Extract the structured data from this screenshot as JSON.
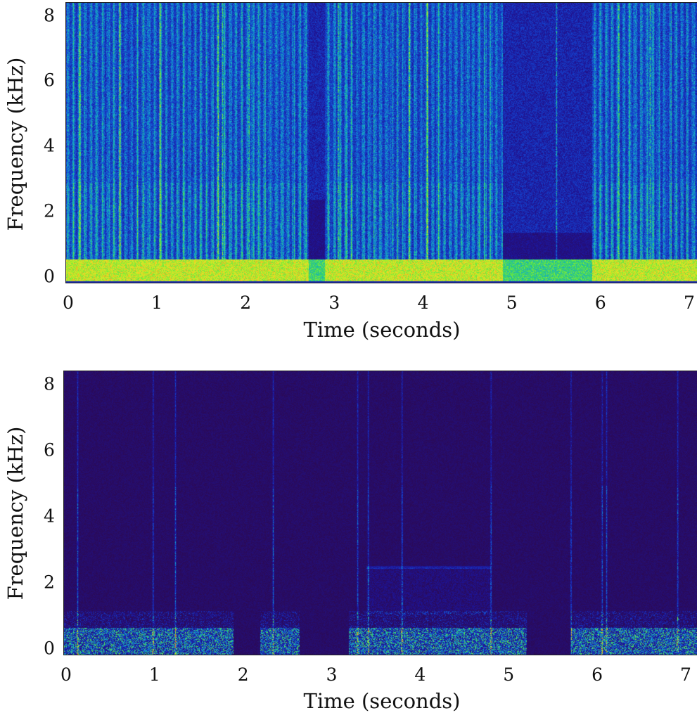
{
  "chart_data": [
    {
      "type": "heatmap",
      "title": "",
      "xlabel": "Time (seconds)",
      "ylabel": "Frequency (kHz)",
      "xlim": [
        0,
        7.08
      ],
      "ylim": [
        0,
        8.4
      ],
      "xticks": [
        "0",
        "1",
        "2",
        "3",
        "4",
        "5",
        "6",
        "7"
      ],
      "yticks": [
        "0",
        "2",
        "4",
        "6",
        "8"
      ],
      "colormap": "jet-like",
      "description_values": {
        "low_band_max_khz": 0.7,
        "quiet_intervals_s": [
          [
            2.72,
            2.9
          ],
          [
            4.9,
            5.9
          ]
        ],
        "strong_streaks_s": [
          0.15,
          0.6,
          1.05,
          1.7,
          1.75,
          2.05,
          3.05,
          3.85,
          4.05,
          5.5,
          6.2,
          6.55
        ]
      }
    },
    {
      "type": "heatmap",
      "title": "",
      "xlabel": "Time (seconds)",
      "ylabel": "Frequency (kHz)",
      "xlim": [
        0,
        7.12
      ],
      "ylim": [
        0,
        8.4
      ],
      "xticks": [
        "0",
        "1",
        "2",
        "3",
        "4",
        "5",
        "6",
        "7"
      ],
      "yticks": [
        "0",
        "2",
        "4",
        "6",
        "8"
      ],
      "colormap": "jet-like",
      "description_values": {
        "low_band_max_khz": 0.8,
        "active_intervals_s": [
          [
            0,
            1.9
          ],
          [
            2.2,
            2.65
          ],
          [
            3.2,
            4.9
          ],
          [
            4.85,
            5.2
          ],
          [
            5.7,
            7.12
          ]
        ],
        "strong_streaks_s": [
          0.15,
          1.0,
          1.25,
          2.35,
          3.3,
          3.42,
          3.8,
          4.8,
          5.7,
          6.05,
          6.1,
          6.9
        ]
      }
    }
  ]
}
